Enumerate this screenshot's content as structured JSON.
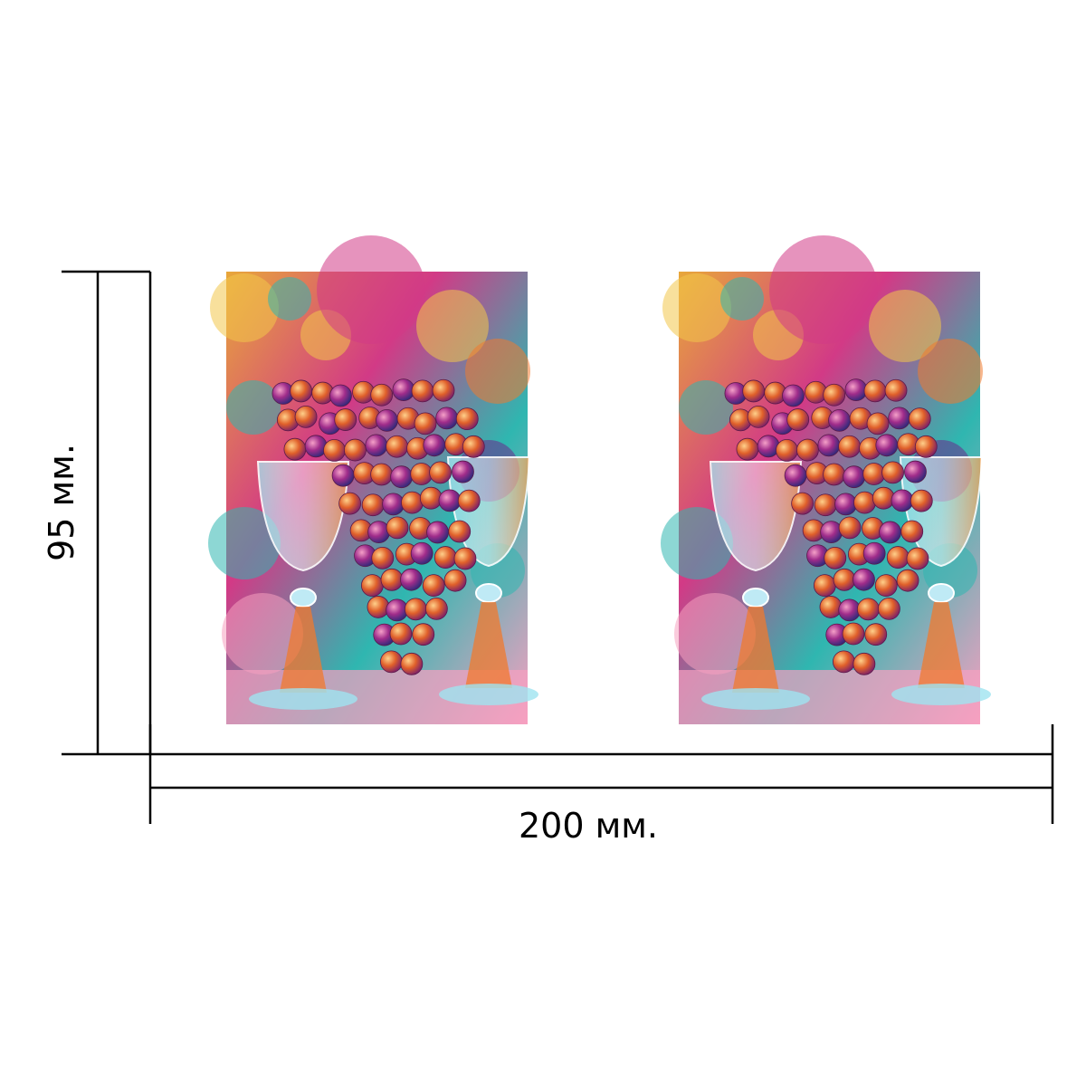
{
  "dimensions": {
    "width_label": "200 мм.",
    "height_label": "95 мм."
  },
  "artwork": {
    "panel_count": 2,
    "colors": {
      "magenta": "#d23a86",
      "orange": "#f07a2e",
      "teal": "#2fb6b0",
      "purple": "#6a2a8c",
      "yellow": "#f3c64a",
      "pink": "#f6a0c0",
      "line": "#000000"
    }
  }
}
